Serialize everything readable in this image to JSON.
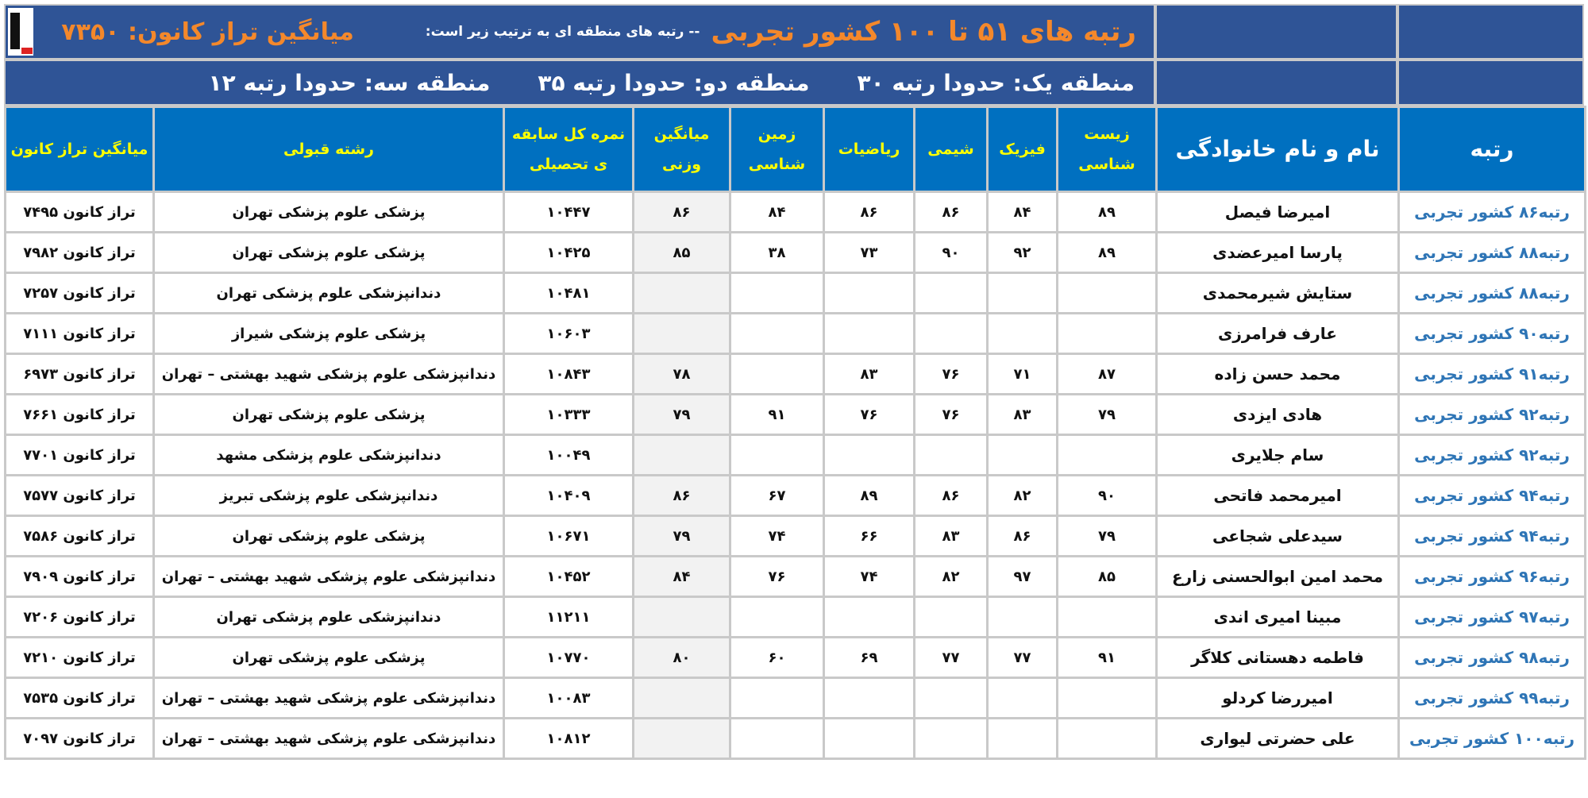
{
  "header": {
    "title": "رتبه های ۵۱ تا ۱۰۰ کشور تجربی",
    "subtitle": "-- رتبه های منطقه ای به ترتیب زیر است:",
    "average": "میانگین تراز کانون: ۷۳۵۰",
    "regions": [
      "منطقه یک: حدودا رتبه ۳۰",
      "منطقه دو: حدودا رتبه ۳۵",
      "منطقه سه: حدودا رتبه ۱۲"
    ]
  },
  "colors": {
    "title_band": "#2f5496",
    "header_bg": "#0070c0",
    "header_text": "#ffff00",
    "accent_orange": "#f4882b",
    "rank_blue": "#2e75b6"
  },
  "columns": [
    "رتبه",
    "نام و نام خانوادگی",
    "زیست شناسی",
    "فیزیک",
    "شیمی",
    "ریاضیات",
    "زمین شناسی",
    "میانگین وزنی",
    "نمره کل سابقه ی تحصیلی",
    "رشته قبولی",
    "میانگین تراز کانون"
  ],
  "rows": [
    {
      "rank": "رتبه۸۶ کشور تجربی",
      "name": "امیرضا فیصل",
      "scores": [
        "۸۹",
        "۸۴",
        "۸۶",
        "۸۶",
        "۸۴",
        "۸۶"
      ],
      "gpa": "۱۰۴۴۷",
      "major": "پزشکی علوم پزشکی تهران",
      "taraz": "تراز کانون ۷۴۹۵"
    },
    {
      "rank": "رتبه۸۸ کشور تجربی",
      "name": "پارسا امیرعضدی",
      "scores": [
        "۸۹",
        "۹۲",
        "۹۰",
        "۷۳",
        "۳۸",
        "۸۵"
      ],
      "gpa": "۱۰۴۲۵",
      "major": "پزشکی علوم پزشکی تهران",
      "taraz": "تراز کانون ۷۹۸۲"
    },
    {
      "rank": "رتبه۸۸ کشور تجربی",
      "name": "ستایش شیرمحمدی",
      "scores": [
        "",
        "",
        "",
        "",
        "",
        ""
      ],
      "gpa": "۱۰۴۸۱",
      "major": "دندانپزشکی علوم پزشکی تهران",
      "taraz": "تراز کانون ۷۲۵۷"
    },
    {
      "rank": "رتبه۹۰ کشور تجربی",
      "name": "عارف فرامرزی",
      "scores": [
        "",
        "",
        "",
        "",
        "",
        ""
      ],
      "gpa": "۱۰۶۰۳",
      "major": "پزشکی علوم پزشکی شیراز",
      "taraz": "تراز کانون ۷۱۱۱"
    },
    {
      "rank": "رتبه۹۱ کشور تجربی",
      "name": "محمد حسن زاده",
      "scores": [
        "۸۷",
        "۷۱",
        "۷۶",
        "۸۳",
        "",
        "۷۸"
      ],
      "gpa": "۱۰۸۴۳",
      "major": "دندانپزشکی علوم پزشکی شهید بهشتی – تهران",
      "taraz": "تراز کانون ۶۹۷۳"
    },
    {
      "rank": "رتبه۹۲ کشور تجربی",
      "name": "هادی ایزدی",
      "scores": [
        "۷۹",
        "۸۳",
        "۷۶",
        "۷۶",
        "۹۱",
        "۷۹"
      ],
      "gpa": "۱۰۳۳۳",
      "major": "پزشکی علوم پزشکی تهران",
      "taraz": "تراز کانون ۷۶۶۱"
    },
    {
      "rank": "رتبه۹۲ کشور تجربی",
      "name": "سام جلایری",
      "scores": [
        "",
        "",
        "",
        "",
        "",
        ""
      ],
      "gpa": "۱۰۰۴۹",
      "major": "دندانپزشکی علوم پزشکی مشهد",
      "taraz": "تراز کانون ۷۷۰۱"
    },
    {
      "rank": "رتبه۹۴ کشور تجربی",
      "name": "امیرمحمد فاتحی",
      "scores": [
        "۹۰",
        "۸۲",
        "۸۶",
        "۸۹",
        "۶۷",
        "۸۶"
      ],
      "gpa": "۱۰۴۰۹",
      "major": "دندانپزشکی علوم پزشکی تبریز",
      "taraz": "تراز کانون ۷۵۷۷"
    },
    {
      "rank": "رتبه۹۴ کشور تجربی",
      "name": "سیدعلی شجاعی",
      "scores": [
        "۷۹",
        "۸۶",
        "۸۳",
        "۶۶",
        "۷۴",
        "۷۹"
      ],
      "gpa": "۱۰۶۷۱",
      "major": "پزشکی علوم پزشکی تهران",
      "taraz": "تراز کانون ۷۵۸۶"
    },
    {
      "rank": "رتبه۹۶ کشور تجربی",
      "name": "محمد امین ابوالحسنی زارع",
      "scores": [
        "۸۵",
        "۹۷",
        "۸۲",
        "۷۴",
        "۷۶",
        "۸۴"
      ],
      "gpa": "۱۰۴۵۲",
      "major": "دندانپزشکی علوم پزشکی شهید بهشتی – تهران",
      "taraz": "تراز کانون ۷۹۰۹"
    },
    {
      "rank": "رتبه۹۷ کشور تجربی",
      "name": "مبینا امیری اندی",
      "scores": [
        "",
        "",
        "",
        "",
        "",
        ""
      ],
      "gpa": "۱۱۲۱۱",
      "major": "دندانپزشکی علوم پزشکی تهران",
      "taraz": "تراز کانون ۷۲۰۶"
    },
    {
      "rank": "رتبه۹۸ کشور تجربی",
      "name": "فاطمه دهستانی کلاگر",
      "scores": [
        "۹۱",
        "۷۷",
        "۷۷",
        "۶۹",
        "۶۰",
        "۸۰"
      ],
      "gpa": "۱۰۷۷۰",
      "major": "پزشکی علوم پزشکی تهران",
      "taraz": "تراز کانون ۷۲۱۰"
    },
    {
      "rank": "رتبه۹۹ کشور تجربی",
      "name": "امیررضا کردلو",
      "scores": [
        "",
        "",
        "",
        "",
        "",
        ""
      ],
      "gpa": "۱۰۰۸۳",
      "major": "دندانپزشکی علوم پزشکی شهید بهشتی – تهران",
      "taraz": "تراز کانون ۷۵۳۵"
    },
    {
      "rank": "رتبه۱۰۰ کشور تجربی",
      "name": "علی حضرتی لیواری",
      "scores": [
        "",
        "",
        "",
        "",
        "",
        ""
      ],
      "gpa": "۱۰۸۱۲",
      "major": "دندانپزشکی علوم پزشکی شهید بهشتی – تهران",
      "taraz": "تراز کانون ۷۰۹۷"
    }
  ]
}
